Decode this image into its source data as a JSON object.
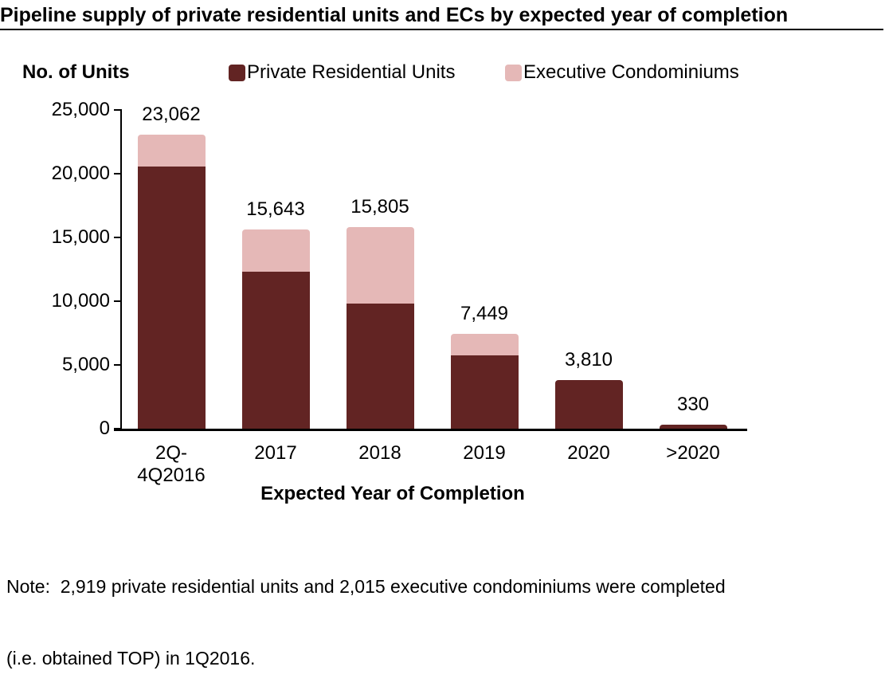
{
  "chart_data": {
    "type": "bar",
    "stacked": true,
    "title": "Pipeline supply of private residential units and ECs by expected year of completion",
    "xlabel": "Expected Year of Completion",
    "ylabel": "No. of Units",
    "ylim": [
      0,
      25000
    ],
    "ytick_interval": 5000,
    "yticks": [
      "0",
      "5,000",
      "10,000",
      "15,000",
      "20,000",
      "25,000"
    ],
    "grid": false,
    "legend_position": "top",
    "categories": [
      "2Q-4Q2016",
      "2017",
      "2018",
      "2019",
      "2020",
      ">2020"
    ],
    "category_label_lines": [
      [
        "2Q-",
        "4Q2016"
      ],
      [
        "2017"
      ],
      [
        "2018"
      ],
      [
        "2019"
      ],
      [
        "2020"
      ],
      [
        ">2020"
      ]
    ],
    "series": [
      {
        "name": "Private Residential Units",
        "color": "#622423",
        "values": [
          20577,
          12334,
          9784,
          5754,
          3810,
          330
        ]
      },
      {
        "name": "Executive Condominiums",
        "color": "#E5B8B7",
        "values": [
          2485,
          3309,
          6021,
          1695,
          0,
          0
        ]
      }
    ],
    "totals": [
      23062,
      15643,
      15805,
      7449,
      3810,
      330
    ],
    "total_labels": [
      "23,062",
      "15,643",
      "15,805",
      "7,449",
      "3,810",
      "330"
    ]
  },
  "note": {
    "line1": "Note:  2,919 private residential units and 2,015 executive condominiums were completed",
    "line2": "(i.e. obtained TOP) in 1Q2016."
  }
}
